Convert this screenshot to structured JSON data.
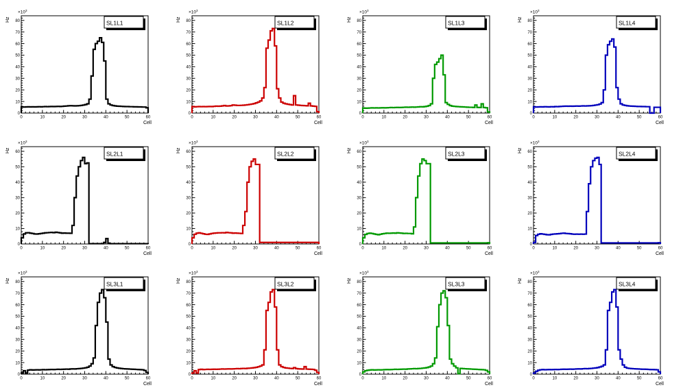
{
  "window": {
    "background": "#ffffff"
  },
  "grid": {
    "rows": 3,
    "cols": 4
  },
  "axis_defaults": {
    "xlabel": "Cell",
    "ylabel": "Hz",
    "y_scale_label": "×10",
    "y_scale_exponent": "3",
    "x_minor_step": 2,
    "y_minor_step": 2
  },
  "chart_data": [
    {
      "type": "line",
      "style": "step-histogram",
      "title": "SL1L1",
      "color": "#000000",
      "xlabel": "Cell",
      "ylabel": "Hz",
      "y_scale_label": "×10",
      "y_scale_exponent": "3",
      "xlim": [
        0,
        60
      ],
      "ylim": [
        0,
        84
      ],
      "bin_width": 1,
      "xticks": [
        0,
        10,
        20,
        30,
        40,
        50,
        60
      ],
      "yticks": [
        0,
        10,
        20,
        30,
        40,
        50,
        60,
        70,
        80
      ],
      "values": [
        5.3,
        5.2,
        5.3,
        5.4,
        5.3,
        5.4,
        5.3,
        5.4,
        5.5,
        5.4,
        5.5,
        5.6,
        5.5,
        5.6,
        5.7,
        5.6,
        5.7,
        5.8,
        5.7,
        5.8,
        6.0,
        6.1,
        6.3,
        6.4,
        6.3,
        6.2,
        6.3,
        6.4,
        6.6,
        6.9,
        7.3,
        8.0,
        12,
        32,
        55,
        60,
        62,
        65,
        61,
        45,
        12,
        8,
        7,
        6.5,
        6.2,
        6.0,
        5.9,
        5.8,
        5.7,
        5.6,
        5.6,
        5.5,
        5.5,
        5.4,
        5.4,
        5.3,
        5.3,
        5.2,
        5.2,
        4.6
      ]
    },
    {
      "type": "line",
      "style": "step-histogram",
      "title": "SL1L2",
      "color": "#cc0000",
      "xlabel": "Cell",
      "ylabel": "Hz",
      "y_scale_label": "×10",
      "y_scale_exponent": "3",
      "xlim": [
        0,
        60
      ],
      "ylim": [
        0,
        84
      ],
      "bin_width": 1,
      "xticks": [
        0,
        10,
        20,
        30,
        40,
        50,
        60
      ],
      "yticks": [
        0,
        10,
        20,
        30,
        40,
        50,
        60,
        70,
        80
      ],
      "values": [
        5.6,
        5.4,
        5.5,
        5.6,
        5.5,
        5.6,
        5.5,
        5.6,
        5.7,
        5.6,
        5.8,
        6.0,
        5.9,
        6.0,
        6.2,
        6.5,
        6.1,
        6.2,
        6.4,
        7.0,
        6.8,
        6.6,
        6.6,
        6.7,
        6.8,
        7.0,
        7.2,
        7.5,
        7.8,
        8.2,
        8.8,
        9.5,
        10.5,
        13,
        22,
        56,
        63,
        71,
        73,
        58,
        21,
        13,
        9.5,
        8.5,
        8.0,
        7.6,
        7.3,
        7.0,
        15,
        7.0,
        6.8,
        6.6,
        6.5,
        6.4,
        6.3,
        8.5,
        6.2,
        6.0,
        5.8,
        1.2
      ]
    },
    {
      "type": "line",
      "style": "step-histogram",
      "title": "SL1L3",
      "color": "#009900",
      "xlabel": "Cell",
      "ylabel": "Hz",
      "y_scale_label": "×10",
      "y_scale_exponent": "3",
      "xlim": [
        0,
        60
      ],
      "ylim": [
        0,
        84
      ],
      "bin_width": 1,
      "xticks": [
        0,
        10,
        20,
        30,
        40,
        50,
        60
      ],
      "yticks": [
        0,
        10,
        20,
        30,
        40,
        50,
        60,
        70,
        80
      ],
      "values": [
        4.4,
        4.2,
        4.3,
        4.4,
        4.5,
        4.4,
        4.5,
        4.4,
        4.5,
        4.6,
        4.5,
        4.6,
        4.7,
        4.8,
        4.7,
        4.8,
        4.9,
        4.8,
        4.9,
        5.0,
        5.1,
        5.0,
        5.1,
        5.2,
        5.1,
        5.2,
        5.3,
        5.5,
        5.4,
        5.6,
        5.9,
        6.5,
        8.0,
        30,
        42,
        44,
        47,
        50,
        33,
        9.0,
        7.5,
        6.5,
        6.0,
        5.8,
        5.6,
        5.5,
        5.4,
        5.3,
        5.2,
        5.1,
        5.0,
        5.0,
        4.9,
        7.0,
        4.9,
        4.8,
        8.0,
        4.8,
        4.6,
        1.0
      ]
    },
    {
      "type": "line",
      "style": "step-histogram",
      "title": "SL1L4",
      "color": "#0000bb",
      "xlabel": "Cell",
      "ylabel": "Hz",
      "y_scale_label": "×10",
      "y_scale_exponent": "3",
      "xlim": [
        0,
        60
      ],
      "ylim": [
        0,
        84
      ],
      "bin_width": 1,
      "xticks": [
        0,
        10,
        20,
        30,
        40,
        50,
        60
      ],
      "yticks": [
        0,
        10,
        20,
        30,
        40,
        50,
        60,
        70,
        80
      ],
      "values": [
        5.4,
        5.2,
        5.3,
        5.4,
        5.3,
        5.5,
        5.4,
        5.3,
        5.5,
        5.4,
        5.6,
        5.5,
        5.7,
        5.8,
        5.9,
        6.0,
        5.9,
        6.0,
        5.9,
        6.0,
        6.1,
        6.0,
        6.1,
        6.2,
        6.1,
        6.2,
        6.3,
        6.4,
        6.6,
        6.9,
        7.2,
        7.8,
        9.0,
        20,
        50,
        59,
        62,
        64,
        57,
        22,
        12,
        8.0,
        7.0,
        6.6,
        6.3,
        6.1,
        6.0,
        5.9,
        5.8,
        5.7,
        5.7,
        5.6,
        5.6,
        5.5,
        5.5,
        0,
        0,
        5.0,
        5.0,
        5.0
      ]
    },
    {
      "type": "line",
      "style": "step-histogram",
      "title": "SL2L1",
      "color": "#000000",
      "xlabel": "Cell",
      "ylabel": "Hz",
      "y_scale_label": "×10",
      "y_scale_exponent": "3",
      "xlim": [
        0,
        60
      ],
      "ylim": [
        0,
        63
      ],
      "bin_width": 1,
      "xticks": [
        0,
        10,
        20,
        30,
        40,
        50,
        60
      ],
      "yticks": [
        0,
        10,
        20,
        30,
        40,
        50,
        60
      ],
      "values": [
        4.0,
        6.5,
        7.2,
        7.3,
        7.0,
        6.8,
        6.5,
        6.4,
        6.6,
        6.8,
        7.0,
        7.2,
        7.3,
        7.4,
        7.5,
        7.3,
        7.6,
        7.4,
        7.2,
        7.0,
        7.1,
        7.0,
        7.0,
        6.9,
        12,
        30,
        44,
        50,
        54,
        56,
        52,
        52.5,
        0.2,
        0.2,
        0.2,
        0.2,
        0.2,
        0.2,
        0.2,
        1.0,
        3.5,
        0.5,
        0.2,
        0.2,
        0.2,
        0.2,
        0.2,
        0.2,
        0.2,
        0.2,
        0.2,
        0.2,
        0.2,
        0.2,
        0.2,
        0.2,
        0.2,
        0.2,
        0.2,
        0.2
      ]
    },
    {
      "type": "line",
      "style": "step-histogram",
      "title": "SL2L2",
      "color": "#cc0000",
      "xlabel": "Cell",
      "ylabel": "Hz",
      "y_scale_label": "×10",
      "y_scale_exponent": "3",
      "xlim": [
        0,
        60
      ],
      "ylim": [
        0,
        63
      ],
      "bin_width": 1,
      "xticks": [
        0,
        10,
        20,
        30,
        40,
        50,
        60
      ],
      "yticks": [
        0,
        10,
        20,
        30,
        40,
        50,
        60
      ],
      "values": [
        4.0,
        6.3,
        7.0,
        7.2,
        6.9,
        6.6,
        6.3,
        6.2,
        6.5,
        6.8,
        7.0,
        7.1,
        7.2,
        7.2,
        7.3,
        7.2,
        7.5,
        7.3,
        7.2,
        7.0,
        7.1,
        7.0,
        6.9,
        6.8,
        12,
        21,
        40,
        50,
        53.5,
        55,
        51.5,
        51.5,
        1.0,
        1.0,
        1.0,
        1.0,
        1.0,
        1.0,
        1.0,
        1.0,
        1.0,
        1.0,
        1.0,
        1.0,
        1.0,
        1.0,
        1.0,
        1.0,
        1.0,
        1.0,
        1.0,
        1.0,
        1.0,
        1.0,
        1.0,
        1.0,
        1.0,
        1.0,
        1.0,
        1.0
      ]
    },
    {
      "type": "line",
      "style": "step-histogram",
      "title": "SL2L3",
      "color": "#009900",
      "xlabel": "Cell",
      "ylabel": "Hz",
      "y_scale_label": "×10",
      "y_scale_exponent": "3",
      "xlim": [
        0,
        60
      ],
      "ylim": [
        0,
        63
      ],
      "bin_width": 1,
      "xticks": [
        0,
        10,
        20,
        30,
        40,
        50,
        60
      ],
      "yticks": [
        0,
        10,
        20,
        30,
        40,
        50,
        60
      ],
      "values": [
        4.0,
        6.2,
        6.8,
        7.0,
        6.8,
        6.5,
        6.2,
        6.0,
        6.3,
        6.6,
        6.8,
        7.0,
        6.9,
        7.0,
        7.1,
        7.0,
        7.2,
        7.1,
        7.0,
        6.8,
        6.9,
        6.8,
        6.8,
        6.6,
        11,
        30,
        44,
        52,
        55,
        54,
        52,
        52,
        0.7,
        0.7,
        0.7,
        0.7,
        0.7,
        0.7,
        0.7,
        0.7,
        0.7,
        0.7,
        0.7,
        0.7,
        0.7,
        0.7,
        0.7,
        0.7,
        0.7,
        0.7,
        0.7,
        0.7,
        0.7,
        0.7,
        0.7,
        0.7,
        0.7,
        0.7,
        0.7,
        0.8
      ]
    },
    {
      "type": "line",
      "style": "step-histogram",
      "title": "SL2L4",
      "color": "#0000bb",
      "xlabel": "Cell",
      "ylabel": "Hz",
      "y_scale_label": "×10",
      "y_scale_exponent": "3",
      "xlim": [
        0,
        60
      ],
      "ylim": [
        0,
        63
      ],
      "bin_width": 1,
      "xticks": [
        0,
        10,
        20,
        30,
        40,
        50,
        60
      ],
      "yticks": [
        0,
        10,
        20,
        30,
        40,
        50,
        60
      ],
      "values": [
        1.0,
        5.5,
        6.3,
        6.6,
        6.4,
        6.2,
        6.0,
        5.9,
        6.2,
        6.4,
        6.5,
        6.6,
        6.7,
        6.9,
        7.0,
        6.8,
        6.7,
        6.6,
        6.4,
        6.3,
        6.4,
        6.3,
        6.4,
        6.3,
        6.4,
        21,
        39,
        50,
        54,
        55.5,
        56,
        51.5,
        0.7,
        0.7,
        0.7,
        0.7,
        0.7,
        0.7,
        0.7,
        0.7,
        0.7,
        0.7,
        0.7,
        0.7,
        0.7,
        0.7,
        0.7,
        0.7,
        0.7,
        0.7,
        0.7,
        0.7,
        0.7,
        0.7,
        0.7,
        0.7,
        0.7,
        0.7,
        0.7,
        0.8
      ]
    },
    {
      "type": "line",
      "style": "step-histogram",
      "title": "SL3L1",
      "color": "#000000",
      "xlabel": "Cell",
      "ylabel": "Hz",
      "y_scale_label": "×10",
      "y_scale_exponent": "3",
      "xlim": [
        0,
        60
      ],
      "ylim": [
        0,
        84
      ],
      "bin_width": 1,
      "xticks": [
        0,
        10,
        20,
        30,
        40,
        50,
        60
      ],
      "yticks": [
        0,
        10,
        20,
        30,
        40,
        50,
        60,
        70,
        80
      ],
      "values": [
        1.0,
        3.0,
        1.0,
        3.5,
        3.8,
        3.6,
        3.7,
        3.8,
        3.7,
        3.8,
        3.9,
        3.8,
        3.9,
        4.0,
        4.1,
        4.0,
        4.1,
        4.2,
        4.1,
        4.2,
        4.3,
        4.4,
        4.3,
        4.5,
        4.6,
        4.5,
        4.7,
        4.8,
        5.0,
        5.2,
        5.5,
        6.0,
        7.0,
        9.0,
        14,
        42,
        62,
        70,
        73,
        66,
        45,
        13,
        8.0,
        6.5,
        5.8,
        5.4,
        5.1,
        4.9,
        4.7,
        4.6,
        4.5,
        4.4,
        4.3,
        4.2,
        4.1,
        4.0,
        3.9,
        3.8,
        3.2,
        1.5
      ]
    },
    {
      "type": "line",
      "style": "step-histogram",
      "title": "SL3L2",
      "color": "#cc0000",
      "xlabel": "Cell",
      "ylabel": "Hz",
      "y_scale_label": "×10",
      "y_scale_exponent": "3",
      "xlim": [
        0,
        60
      ],
      "ylim": [
        0,
        84
      ],
      "bin_width": 1,
      "xticks": [
        0,
        10,
        20,
        30,
        40,
        50,
        60
      ],
      "yticks": [
        0,
        10,
        20,
        30,
        40,
        50,
        60,
        70,
        80
      ],
      "values": [
        1.0,
        3.0,
        1.0,
        4.0,
        4.2,
        4.0,
        4.1,
        4.2,
        4.1,
        4.2,
        4.3,
        4.2,
        4.3,
        4.4,
        4.5,
        4.4,
        4.5,
        4.6,
        4.5,
        4.6,
        4.7,
        4.8,
        4.7,
        4.9,
        5.0,
        4.9,
        5.1,
        5.2,
        5.4,
        5.6,
        5.9,
        6.4,
        7.0,
        8.0,
        21,
        55,
        62,
        71,
        73,
        58,
        21,
        8.0,
        6.5,
        5.8,
        5.4,
        5.2,
        5.0,
        4.9,
        5.6,
        4.8,
        4.6,
        4.5,
        4.4,
        6.5,
        4.4,
        4.3,
        4.2,
        4.1,
        3.4,
        1.5
      ]
    },
    {
      "type": "line",
      "style": "step-histogram",
      "title": "SL3L3",
      "color": "#009900",
      "xlabel": "Cell",
      "ylabel": "Hz",
      "y_scale_label": "×10",
      "y_scale_exponent": "3",
      "xlim": [
        0,
        60
      ],
      "ylim": [
        0,
        84
      ],
      "bin_width": 1,
      "xticks": [
        0,
        10,
        20,
        30,
        40,
        50,
        60
      ],
      "yticks": [
        0,
        10,
        20,
        30,
        40,
        50,
        60,
        70,
        80
      ],
      "values": [
        2.0,
        3.0,
        3.4,
        3.6,
        3.8,
        3.6,
        3.7,
        3.8,
        3.7,
        3.8,
        3.9,
        4.0,
        3.9,
        4.0,
        4.1,
        4.2,
        4.1,
        4.2,
        4.3,
        4.4,
        4.3,
        4.5,
        4.6,
        4.7,
        4.8,
        4.7,
        4.9,
        5.0,
        5.2,
        5.4,
        5.7,
        6.2,
        7.0,
        9.0,
        14,
        41,
        60,
        70,
        72,
        66,
        42,
        13,
        9.0,
        7.0,
        5.5,
        0.5,
        5.0,
        4.8,
        4.7,
        4.6,
        4.5,
        4.4,
        4.3,
        4.2,
        4.1,
        4.0,
        3.9,
        3.8,
        3.3,
        2.0
      ]
    },
    {
      "type": "line",
      "style": "step-histogram",
      "title": "SL3L4",
      "color": "#0000bb",
      "xlabel": "Cell",
      "ylabel": "Hz",
      "y_scale_label": "×10",
      "y_scale_exponent": "3",
      "xlim": [
        0,
        60
      ],
      "ylim": [
        0,
        84
      ],
      "bin_width": 1,
      "xticks": [
        0,
        10,
        20,
        30,
        40,
        50,
        60
      ],
      "yticks": [
        0,
        10,
        20,
        30,
        40,
        50,
        60,
        70,
        80
      ],
      "values": [
        1.0,
        2.5,
        3.4,
        3.8,
        4.0,
        3.8,
        3.9,
        4.0,
        3.9,
        4.0,
        4.1,
        4.0,
        4.1,
        4.2,
        4.3,
        4.2,
        4.3,
        4.4,
        4.3,
        4.4,
        4.5,
        4.6,
        4.5,
        4.7,
        4.8,
        4.7,
        4.9,
        5.0,
        5.2,
        5.4,
        5.7,
        6.2,
        6.8,
        8.0,
        21,
        55,
        62,
        71,
        73,
        58,
        21,
        13,
        8.0,
        6.0,
        5.2,
        5.0,
        4.8,
        4.7,
        4.6,
        4.5,
        4.4,
        4.3,
        4.3,
        4.2,
        4.1,
        4.0,
        4.0,
        3.9,
        3.8,
        2.0
      ]
    }
  ]
}
